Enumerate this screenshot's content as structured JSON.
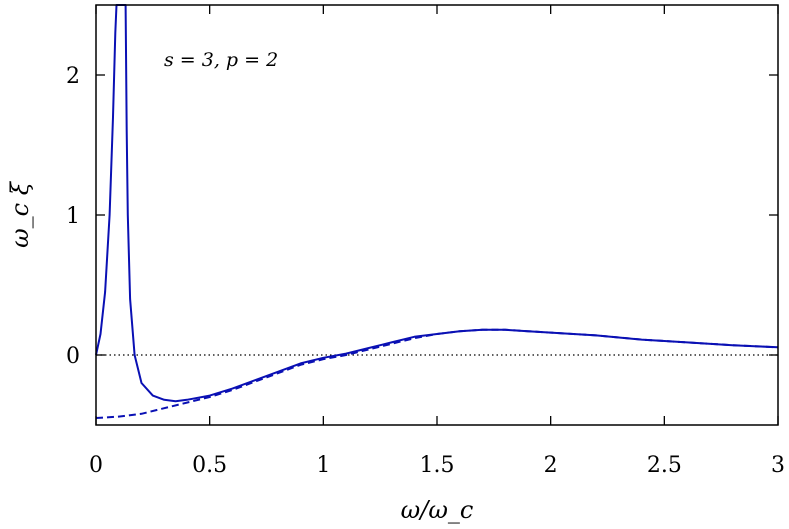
{
  "chart_data": {
    "type": "line",
    "title": "",
    "xlabel": "ω/ω_c",
    "ylabel": "ω_c ξ",
    "annotation": "s = 3, p = 2",
    "xlim": [
      0,
      3
    ],
    "ylim": [
      -0.5,
      2.5
    ],
    "x_ticks": [
      0,
      0.5,
      1,
      1.5,
      2,
      2.5,
      3
    ],
    "x_tick_labels": [
      "0",
      "0.5",
      "1",
      "1.5",
      "2",
      "2.5",
      "3"
    ],
    "y_ticks": [
      0,
      1,
      2
    ],
    "y_tick_labels": [
      "0",
      "1",
      "2"
    ],
    "grid": false,
    "legend": "none",
    "colors": {
      "series": "#0a10b4",
      "zero_line": "#000000",
      "axes": "#000000"
    },
    "series": [
      {
        "style": "solid",
        "x": [
          0.0,
          0.02,
          0.04,
          0.06,
          0.075,
          0.085,
          0.09,
          0.13,
          0.135,
          0.14,
          0.15,
          0.17,
          0.2,
          0.25,
          0.3,
          0.35,
          0.4,
          0.5,
          0.6,
          0.7,
          0.8,
          0.9,
          1.0,
          1.1,
          1.2,
          1.3,
          1.4,
          1.5,
          1.6,
          1.7,
          1.8,
          1.9,
          2.0,
          2.2,
          2.4,
          2.6,
          2.8,
          3.0
        ],
        "y": [
          0.0,
          0.15,
          0.45,
          1.0,
          1.7,
          2.3,
          2.5,
          2.5,
          1.6,
          1.0,
          0.4,
          0.0,
          -0.2,
          -0.29,
          -0.32,
          -0.33,
          -0.32,
          -0.29,
          -0.24,
          -0.18,
          -0.12,
          -0.06,
          -0.02,
          0.01,
          0.05,
          0.09,
          0.13,
          0.15,
          0.17,
          0.18,
          0.18,
          0.17,
          0.16,
          0.14,
          0.11,
          0.09,
          0.07,
          0.055
        ]
      },
      {
        "style": "dashed",
        "x": [
          0.0,
          0.1,
          0.2,
          0.3,
          0.4,
          0.5,
          0.6,
          0.7,
          0.8,
          0.9,
          1.0,
          1.1,
          1.2,
          1.3,
          1.4,
          1.5,
          1.6,
          1.7,
          1.8,
          1.9,
          2.0,
          2.2,
          2.4,
          2.6,
          2.8,
          3.0
        ],
        "y": [
          -0.45,
          -0.44,
          -0.42,
          -0.38,
          -0.34,
          -0.3,
          -0.25,
          -0.19,
          -0.13,
          -0.07,
          -0.03,
          0.0,
          0.04,
          0.08,
          0.12,
          0.15,
          0.17,
          0.18,
          0.18,
          0.17,
          0.16,
          0.14,
          0.11,
          0.09,
          0.07,
          0.055
        ]
      }
    ],
    "reference_lines": [
      {
        "y": 0,
        "style": "dotted"
      }
    ]
  }
}
